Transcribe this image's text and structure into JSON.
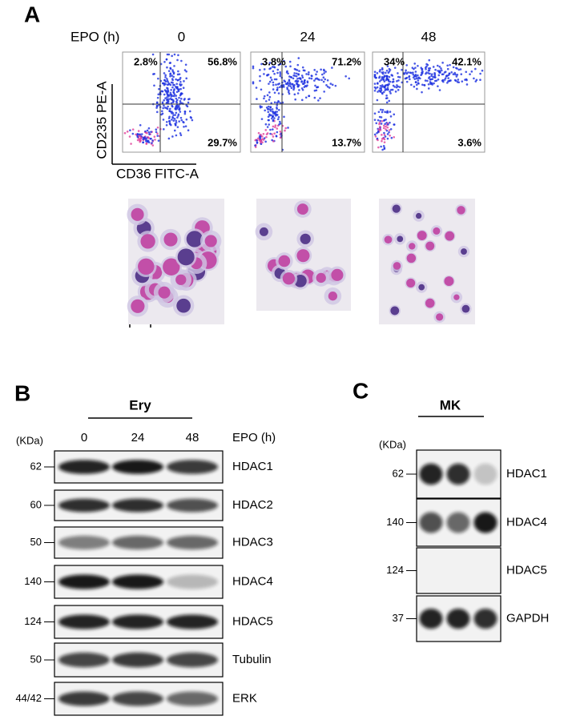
{
  "panel_a": {
    "label": "A",
    "time_label": "EPO (h)",
    "timepoints": [
      "0",
      "24",
      "48"
    ],
    "y_axis_label": "CD235 PE-A",
    "x_axis_label": "CD36 FITC-A",
    "flow_plots": [
      {
        "upper_left": "2.8%",
        "upper_right": "56.8%",
        "lower_right": "29.7%"
      },
      {
        "upper_left": "3.8%",
        "upper_right": "71.2%",
        "lower_right": "13.7%"
      },
      {
        "upper_left": "34%",
        "upper_right": "42.1%",
        "lower_right": "3.6%"
      }
    ]
  },
  "panel_b": {
    "label": "B",
    "group": "Ery",
    "unit_label": "(KDa)",
    "timepoints": [
      "0",
      "24",
      "48"
    ],
    "time_label": "EPO (h)",
    "blots": [
      {
        "marker": "62",
        "protein": "HDAC1"
      },
      {
        "marker": "60",
        "protein": "HDAC2"
      },
      {
        "marker": "50",
        "protein": "HDAC3"
      },
      {
        "marker": "140",
        "protein": "HDAC4"
      },
      {
        "marker": "124",
        "protein": "HDAC5"
      },
      {
        "marker": "50",
        "protein": "Tubulin"
      },
      {
        "marker": "44/42",
        "protein": "ERK"
      }
    ]
  },
  "panel_c": {
    "label": "C",
    "group": "MK",
    "unit_label": "(KDa)",
    "blots": [
      {
        "marker": "62",
        "protein": "HDAC1"
      },
      {
        "marker": "140",
        "protein": "HDAC4"
      },
      {
        "marker": "124",
        "protein": "HDAC5"
      },
      {
        "marker": "37",
        "protein": "GAPDH"
      }
    ]
  }
}
